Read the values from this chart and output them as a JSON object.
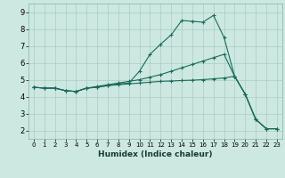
{
  "xlabel": "Humidex (Indice chaleur)",
  "bg_color": "#cce8e0",
  "grid_color": "#aaccc4",
  "line_color": "#1a6b5a",
  "xlim": [
    -0.5,
    23.5
  ],
  "ylim": [
    1.5,
    9.5
  ],
  "xticks": [
    0,
    1,
    2,
    3,
    4,
    5,
    6,
    7,
    8,
    9,
    10,
    11,
    12,
    13,
    14,
    15,
    16,
    17,
    18,
    19,
    20,
    21,
    22,
    23
  ],
  "yticks": [
    2,
    3,
    4,
    5,
    6,
    7,
    8,
    9
  ],
  "line1_x": [
    0,
    1,
    2,
    3,
    4,
    5,
    6,
    7,
    8,
    9,
    10,
    11,
    12,
    13,
    14,
    15,
    16,
    17,
    18,
    19,
    20,
    21,
    22,
    23
  ],
  "line1_y": [
    4.55,
    4.5,
    4.5,
    4.35,
    4.3,
    4.5,
    4.55,
    4.65,
    4.75,
    4.8,
    5.5,
    6.5,
    7.1,
    7.65,
    8.5,
    8.45,
    8.4,
    8.8,
    7.5,
    5.2,
    4.15,
    2.65,
    2.1,
    2.1
  ],
  "line2_x": [
    0,
    1,
    2,
    3,
    4,
    5,
    6,
    7,
    8,
    9,
    10,
    11,
    12,
    13,
    14,
    15,
    16,
    17,
    18,
    19,
    20,
    21,
    22,
    23
  ],
  "line2_y": [
    4.55,
    4.5,
    4.5,
    4.35,
    4.3,
    4.5,
    4.6,
    4.7,
    4.8,
    4.9,
    5.0,
    5.15,
    5.3,
    5.5,
    5.7,
    5.9,
    6.1,
    6.3,
    6.5,
    5.2,
    4.15,
    2.65,
    2.1,
    2.1
  ],
  "line3_x": [
    0,
    1,
    2,
    3,
    4,
    5,
    6,
    7,
    8,
    9,
    10,
    11,
    12,
    13,
    14,
    15,
    16,
    17,
    18,
    19,
    20,
    21,
    22,
    23
  ],
  "line3_y": [
    4.55,
    4.5,
    4.5,
    4.35,
    4.3,
    4.5,
    4.55,
    4.65,
    4.7,
    4.75,
    4.8,
    4.85,
    4.9,
    4.92,
    4.95,
    4.97,
    5.0,
    5.05,
    5.1,
    5.2,
    4.15,
    2.65,
    2.1,
    2.1
  ],
  "xlabel_fontsize": 6.5,
  "tick_fontsize": 5.0,
  "ytick_fontsize": 6.0
}
